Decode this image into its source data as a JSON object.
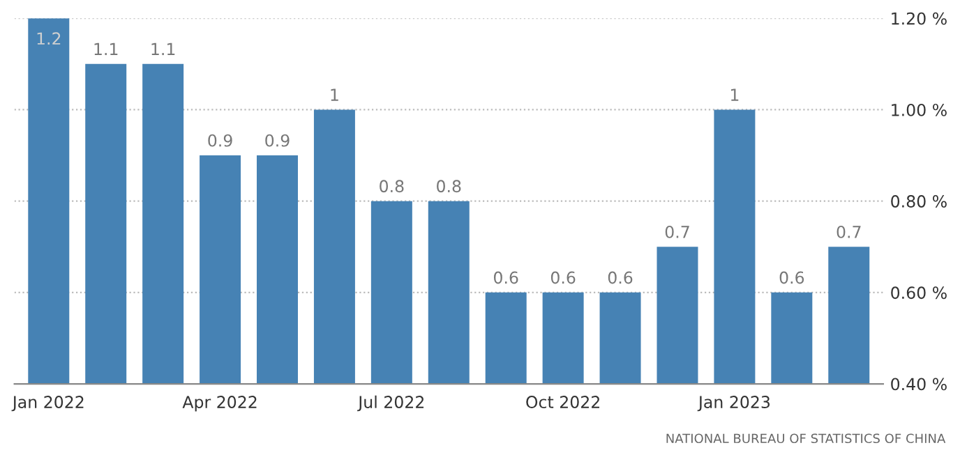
{
  "chart_data": {
    "type": "bar",
    "categories": [
      "Jan 2022",
      null,
      null,
      "Apr 2022",
      null,
      null,
      "Jul 2022",
      null,
      null,
      "Oct 2022",
      null,
      null,
      "Jan 2023",
      null,
      null
    ],
    "values": [
      1.2,
      1.1,
      1.1,
      0.9,
      0.9,
      1,
      0.8,
      0.8,
      0.6,
      0.6,
      0.6,
      0.7,
      1,
      0.6,
      0.7
    ],
    "color": "#4682b4",
    "ylim": [
      0.4,
      1.2
    ],
    "yticks": [
      {
        "value": 0.4,
        "label": "0.40 %"
      },
      {
        "value": 0.6,
        "label": "0.60 %"
      },
      {
        "value": 0.8,
        "label": "0.80 %"
      },
      {
        "value": 1.0,
        "label": "1.00 %"
      },
      {
        "value": 1.2,
        "label": "1.20 %"
      }
    ],
    "grid": "y",
    "data_labels": true,
    "annotations": [
      "NATIONAL BUREAU OF STATISTICS OF CHINA"
    ]
  }
}
